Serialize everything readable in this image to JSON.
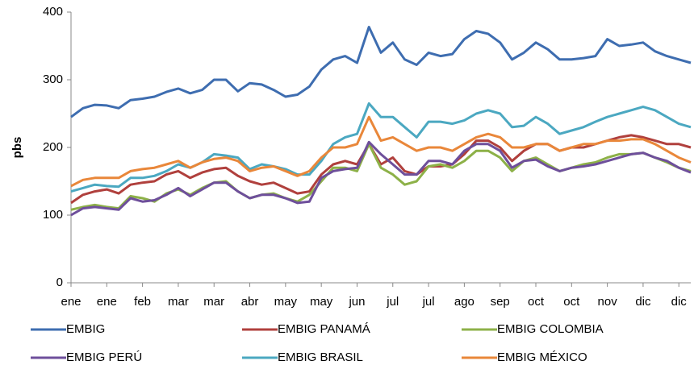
{
  "chart_data": {
    "type": "line",
    "y_label": "pbs",
    "categories": [
      "ene",
      null,
      null,
      "ene",
      null,
      null,
      "feb",
      null,
      null,
      "mar",
      null,
      null,
      "mar",
      null,
      null,
      "abr",
      null,
      null,
      "may",
      null,
      null,
      "may",
      null,
      null,
      "jun",
      null,
      null,
      "jul",
      null,
      null,
      "jul",
      null,
      null,
      "ago",
      null,
      null,
      "sep",
      null,
      null,
      "oct",
      null,
      null,
      "oct",
      null,
      null,
      "nov",
      null,
      null,
      "dic",
      null,
      null,
      "dic",
      null
    ],
    "ylim": [
      0,
      400
    ],
    "yticks": [
      0,
      100,
      200,
      300,
      400
    ],
    "grid": false,
    "series": [
      {
        "name": "EMBIG",
        "color": "#3e6db0",
        "values": [
          245,
          258,
          263,
          262,
          258,
          270,
          272,
          275,
          282,
          287,
          280,
          285,
          300,
          300,
          283,
          295,
          293,
          285,
          275,
          278,
          290,
          315,
          330,
          335,
          325,
          378,
          340,
          355,
          330,
          322,
          340,
          335,
          338,
          360,
          372,
          368,
          355,
          330,
          340,
          355,
          345,
          330,
          330,
          332,
          335,
          360,
          350,
          352,
          355,
          342,
          335,
          330,
          325
        ]
      },
      {
        "name": "EMBIG PANAMÁ",
        "color": "#b0403d",
        "values": [
          118,
          130,
          135,
          138,
          132,
          145,
          148,
          150,
          160,
          165,
          155,
          163,
          168,
          170,
          158,
          150,
          145,
          148,
          140,
          132,
          135,
          160,
          175,
          180,
          175,
          205,
          175,
          185,
          165,
          160,
          172,
          172,
          175,
          190,
          210,
          210,
          200,
          180,
          195,
          205,
          205,
          195,
          200,
          200,
          205,
          210,
          215,
          218,
          215,
          210,
          205,
          205,
          200
        ]
      },
      {
        "name": "EMBIG COLOMBIA",
        "color": "#8db148",
        "values": [
          108,
          112,
          115,
          112,
          110,
          128,
          125,
          120,
          132,
          138,
          130,
          140,
          148,
          150,
          135,
          125,
          130,
          132,
          125,
          120,
          130,
          150,
          170,
          170,
          165,
          205,
          170,
          160,
          145,
          150,
          172,
          175,
          170,
          180,
          195,
          195,
          185,
          165,
          180,
          185,
          175,
          165,
          170,
          175,
          178,
          185,
          190,
          190,
          192,
          185,
          178,
          170,
          165
        ]
      },
      {
        "name": "EMBIG PERÚ",
        "color": "#6e4f9b",
        "values": [
          100,
          110,
          112,
          110,
          108,
          125,
          120,
          122,
          130,
          140,
          128,
          138,
          148,
          148,
          135,
          125,
          130,
          130,
          125,
          118,
          120,
          155,
          165,
          168,
          170,
          208,
          190,
          175,
          160,
          160,
          180,
          180,
          175,
          195,
          205,
          205,
          195,
          170,
          180,
          182,
          172,
          165,
          170,
          172,
          175,
          180,
          185,
          190,
          192,
          185,
          180,
          170,
          163
        ]
      },
      {
        "name": "EMBIG BRASIL",
        "color": "#4ba8c1",
        "values": [
          135,
          140,
          145,
          143,
          142,
          155,
          155,
          158,
          165,
          175,
          170,
          178,
          190,
          188,
          185,
          168,
          175,
          172,
          168,
          160,
          160,
          180,
          205,
          215,
          220,
          265,
          245,
          245,
          230,
          215,
          238,
          238,
          235,
          240,
          250,
          255,
          250,
          230,
          232,
          245,
          235,
          220,
          225,
          230,
          238,
          245,
          250,
          255,
          260,
          255,
          245,
          235,
          230
        ]
      },
      {
        "name": "EMBIG MÉXICO",
        "color": "#e9873a",
        "values": [
          143,
          152,
          155,
          155,
          155,
          165,
          168,
          170,
          175,
          180,
          170,
          178,
          183,
          185,
          180,
          165,
          170,
          172,
          165,
          158,
          165,
          185,
          200,
          200,
          205,
          245,
          210,
          215,
          205,
          195,
          200,
          200,
          195,
          205,
          215,
          220,
          215,
          200,
          200,
          205,
          205,
          195,
          200,
          205,
          205,
          210,
          210,
          212,
          212,
          205,
          195,
          185,
          178
        ]
      }
    ]
  }
}
